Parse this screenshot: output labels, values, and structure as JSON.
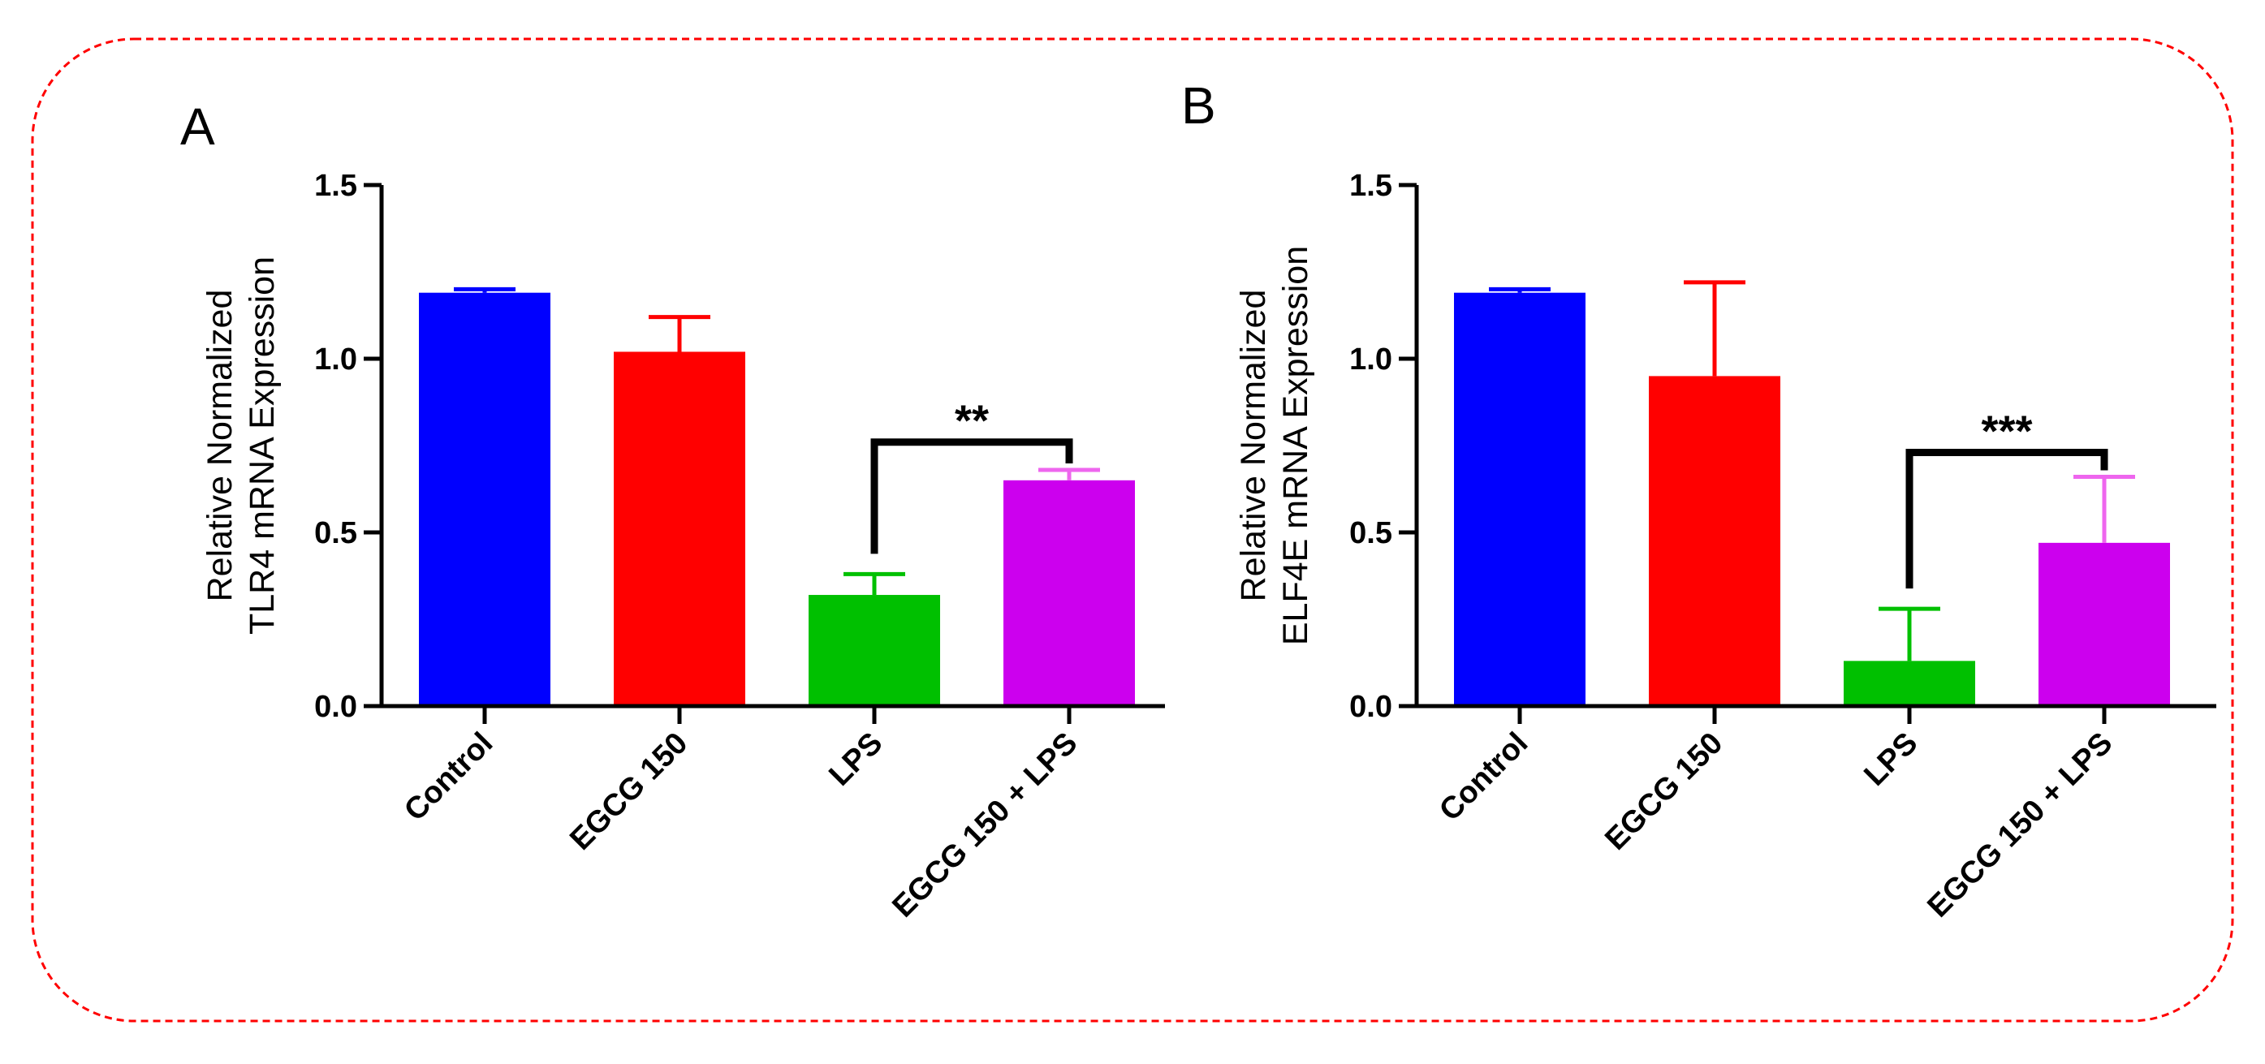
{
  "figure": {
    "border_color": "#ff0000"
  },
  "chart_data": [
    {
      "type": "bar",
      "panel_label": "A",
      "title": "",
      "xlabel": "",
      "ylabel_lines": [
        "Relative Normalized",
        "TLR4 mRNA Expression"
      ],
      "ylim": [
        0,
        1.5
      ],
      "yticks": [
        "0.0",
        "0.5",
        "1.0",
        "1.5"
      ],
      "grid": false,
      "categories": [
        "Control",
        "EGCG 150",
        "LPS",
        "EGCG 150 + LPS"
      ],
      "values": [
        1.19,
        1.02,
        0.32,
        0.65
      ],
      "errors": [
        0.01,
        0.1,
        0.06,
        0.03
      ],
      "colors": [
        "#0000ff",
        "#ff0000",
        "#00c000",
        "#cc00ee"
      ],
      "error_colors": [
        "#0000ff",
        "#ff0000",
        "#00c000",
        "#ee66ee"
      ],
      "significance": {
        "from": 2,
        "to": 3,
        "label": "**",
        "y": 0.76
      }
    },
    {
      "type": "bar",
      "panel_label": "B",
      "title": "",
      "xlabel": "",
      "ylabel_lines": [
        "Relative Normalized",
        "ELF4E mRNA Expression"
      ],
      "ylim": [
        0,
        1.5
      ],
      "yticks": [
        "0.0",
        "0.5",
        "1.0",
        "1.5"
      ],
      "grid": false,
      "categories": [
        "Control",
        "EGCG 150",
        "LPS",
        "EGCG 150 + LPS"
      ],
      "values": [
        1.19,
        0.95,
        0.13,
        0.47
      ],
      "errors": [
        0.01,
        0.27,
        0.15,
        0.19
      ],
      "colors": [
        "#0000ff",
        "#ff0000",
        "#00c000",
        "#cc00ee"
      ],
      "error_colors": [
        "#0000ff",
        "#ff0000",
        "#00c000",
        "#ee66ee"
      ],
      "significance": {
        "from": 2,
        "to": 3,
        "label": "***",
        "y": 0.73
      }
    }
  ]
}
